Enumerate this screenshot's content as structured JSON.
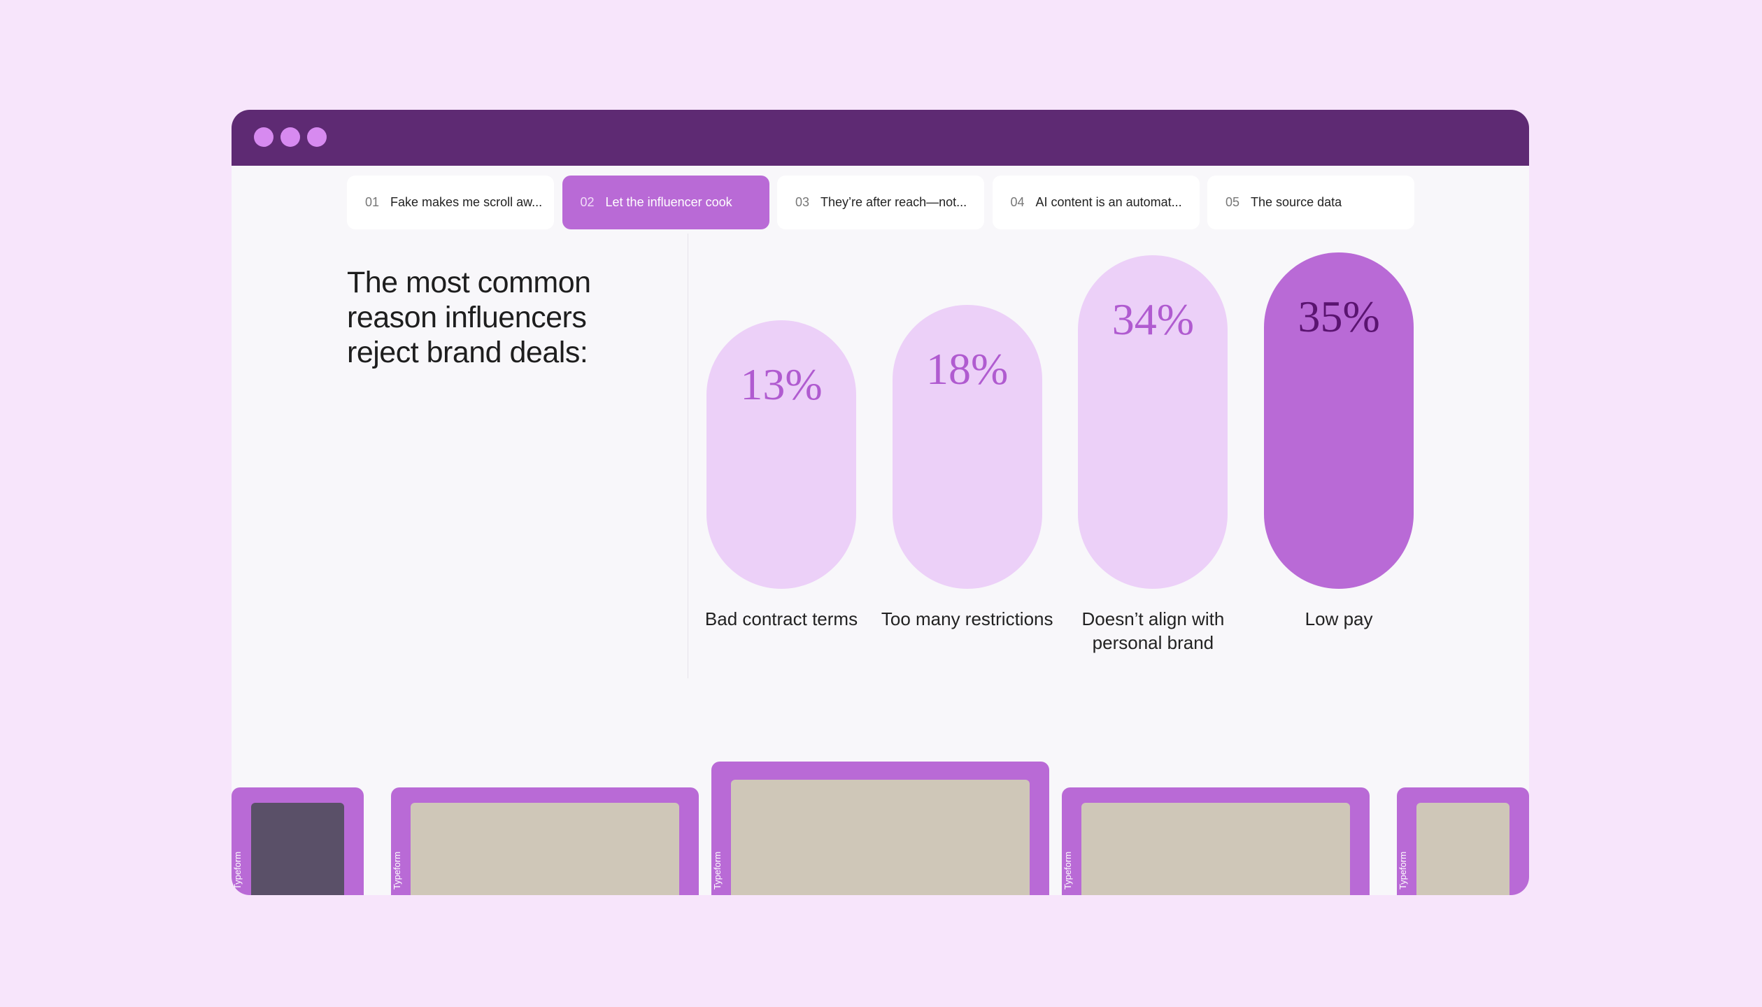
{
  "tabs": [
    {
      "number": "01",
      "label": "Fake makes me scroll aw..."
    },
    {
      "number": "02",
      "label": "Let the influencer cook"
    },
    {
      "number": "03",
      "label": "They’re after reach—not..."
    },
    {
      "number": "04",
      "label": "AI content is an automat..."
    },
    {
      "number": "05",
      "label": "The source data"
    }
  ],
  "active_tab": 1,
  "heading": "The most common reason influencers reject brand deals:",
  "chart_data": {
    "type": "bar",
    "categories": [
      "Bad contract terms",
      "Too many restrictions",
      "Doesn’t align with personal brand",
      "Low pay"
    ],
    "values": [
      13,
      18,
      34,
      35
    ],
    "value_labels": [
      "13%",
      "18%",
      "34%",
      "35%"
    ],
    "colors": [
      "#ecd0f8",
      "#ecd0f8",
      "#ecd0f8",
      "#b96ad6"
    ],
    "label_colors": [
      "#b05bd0",
      "#b05bd0",
      "#b05bd0",
      "#5a1470"
    ]
  },
  "video_tag": "Typeform"
}
